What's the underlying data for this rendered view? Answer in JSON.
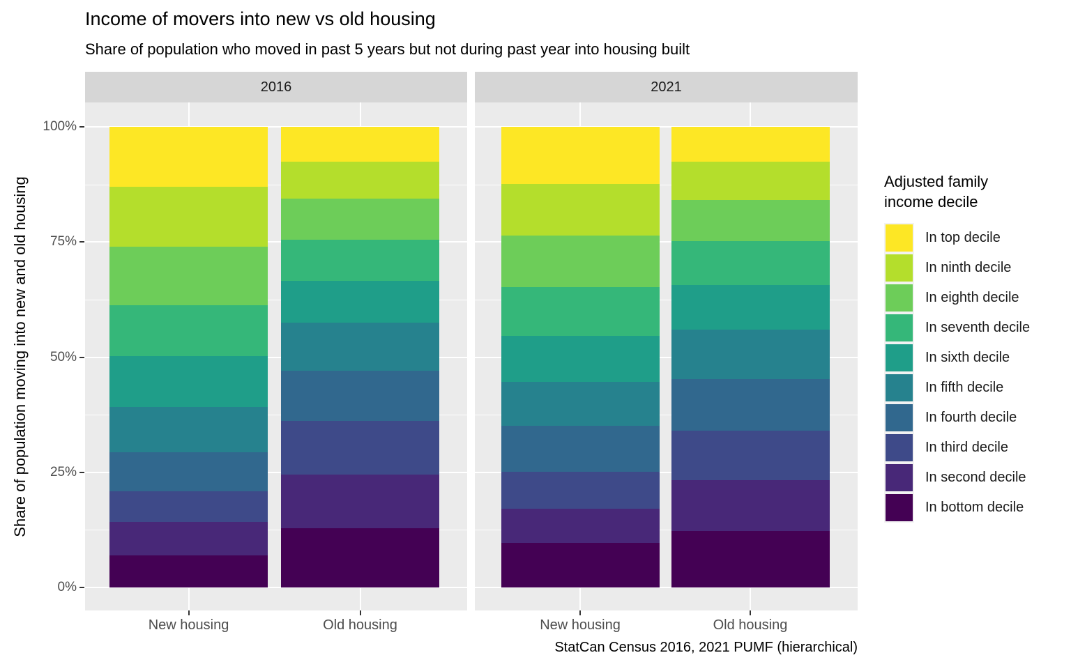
{
  "chart_data": {
    "type": "bar",
    "variant": "stacked-percent",
    "title": "Income of movers into new vs old housing",
    "subtitle": "Share of population who moved in past 5 years but not during past year into housing built",
    "caption": "StatCan Census 2016, 2021 PUMF (hierarchical)",
    "ylabel": "Share of population moving into new and old housing",
    "xlabel": "",
    "ylim": [
      0,
      100
    ],
    "y_major_ticks": [
      0,
      25,
      50,
      75,
      100
    ],
    "y_minor_ticks": [
      12.5,
      37.5,
      62.5,
      87.5
    ],
    "y_tick_labels": [
      "0%",
      "25%",
      "50%",
      "75%",
      "100%"
    ],
    "grid": "on",
    "panel_background": "#EBEBEB",
    "strip_background": "#D6D6D6",
    "gridline_color": "#FFFFFF",
    "categories": [
      "New housing",
      "Old housing"
    ],
    "legend": {
      "position": "right",
      "title": "Adjusted family income decile"
    },
    "deciles": [
      {
        "label": "In top decile",
        "color": "#FDE725"
      },
      {
        "label": "In ninth decile",
        "color": "#B4DE2C"
      },
      {
        "label": "In eighth decile",
        "color": "#6DCD59"
      },
      {
        "label": "In seventh decile",
        "color": "#35B779"
      },
      {
        "label": "In sixth decile",
        "color": "#1F9E89"
      },
      {
        "label": "In fifth decile",
        "color": "#26828E"
      },
      {
        "label": "In fourth decile",
        "color": "#31688E"
      },
      {
        "label": "In third decile",
        "color": "#3E4A89"
      },
      {
        "label": "In second decile",
        "color": "#482878"
      },
      {
        "label": "In bottom decile",
        "color": "#440154"
      }
    ],
    "facets": [
      {
        "label": "2016",
        "bars": [
          {
            "category": "New housing",
            "values_pct_top_to_bottom": [
              13.0,
              13.0,
              12.7,
              11.1,
              11.0,
              9.9,
              8.4,
              6.7,
              7.2,
              7.0
            ]
          },
          {
            "category": "Old housing",
            "values_pct_top_to_bottom": [
              7.6,
              8.0,
              8.9,
              8.9,
              9.1,
              10.5,
              10.8,
              11.7,
              11.6,
              12.9
            ]
          }
        ]
      },
      {
        "label": "2021",
        "bars": [
          {
            "category": "New housing",
            "values_pct_top_to_bottom": [
              12.4,
              11.2,
              11.2,
              10.6,
              10.0,
              9.5,
              10.0,
              8.0,
              7.4,
              9.7
            ]
          },
          {
            "category": "Old housing",
            "values_pct_top_to_bottom": [
              7.6,
              8.3,
              8.9,
              9.5,
              9.7,
              10.8,
              11.2,
              10.7,
              11.0,
              12.3
            ]
          }
        ]
      }
    ]
  }
}
